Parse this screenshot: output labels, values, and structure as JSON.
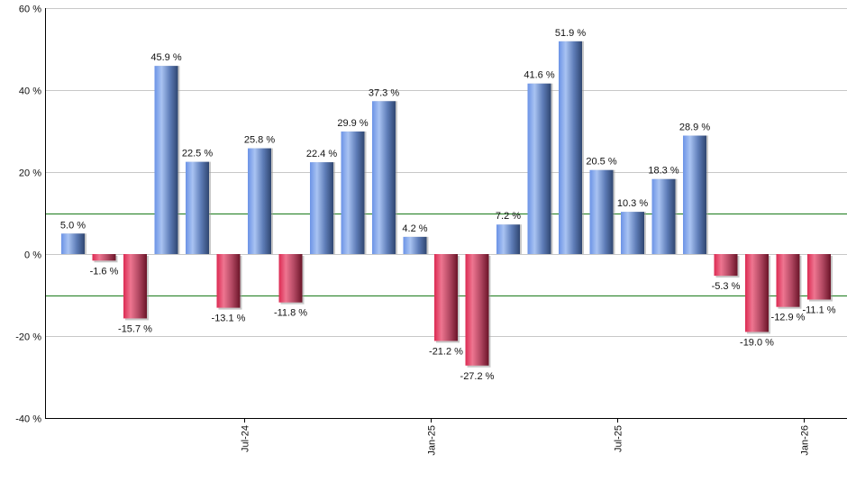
{
  "chart_data": {
    "type": "bar",
    "title": "",
    "xlabel": "",
    "ylabel": "",
    "ylim": [
      -40,
      60
    ],
    "yticks": [
      -40,
      -20,
      0,
      20,
      40,
      60
    ],
    "ytick_labels": [
      "-40 %",
      "-20 %",
      "0 %",
      "20 %",
      "40 %",
      "60 %"
    ],
    "grid": true,
    "legend": null,
    "reference_lines": [
      10,
      -10
    ],
    "reference_line_color": "#1a7a1a",
    "positive_color": "#6f95e0",
    "negative_color": "#d63a5c",
    "x_tick_labels": [
      {
        "label": "Jul-24",
        "after_bar_index": 5
      },
      {
        "label": "Jan-25",
        "after_bar_index": 11
      },
      {
        "label": "Jul-25",
        "after_bar_index": 17
      },
      {
        "label": "Jan-26",
        "after_bar_index": 23
      }
    ],
    "values": [
      5.0,
      -1.6,
      -15.7,
      45.9,
      22.5,
      -13.1,
      25.8,
      -11.8,
      22.4,
      29.9,
      37.3,
      4.2,
      -21.2,
      -27.2,
      7.2,
      41.6,
      51.9,
      20.5,
      10.3,
      18.3,
      28.9,
      -5.3,
      -19.0,
      -12.9,
      -11.1
    ],
    "labels": [
      "5.0 %",
      "-1.6 %",
      "-15.7 %",
      "45.9 %",
      "22.5 %",
      "-13.1 %",
      "25.8 %",
      "-11.8 %",
      "22.4 %",
      "29.9 %",
      "37.3 %",
      "4.2 %",
      "-21.2 %",
      "-27.2 %",
      "7.2 %",
      "41.6 %",
      "51.9 %",
      "20.5 %",
      "10.3 %",
      "18.3 %",
      "28.9 %",
      "-5.3 %",
      "-19.0 %",
      "-12.9 %",
      "-11.1 %"
    ]
  }
}
